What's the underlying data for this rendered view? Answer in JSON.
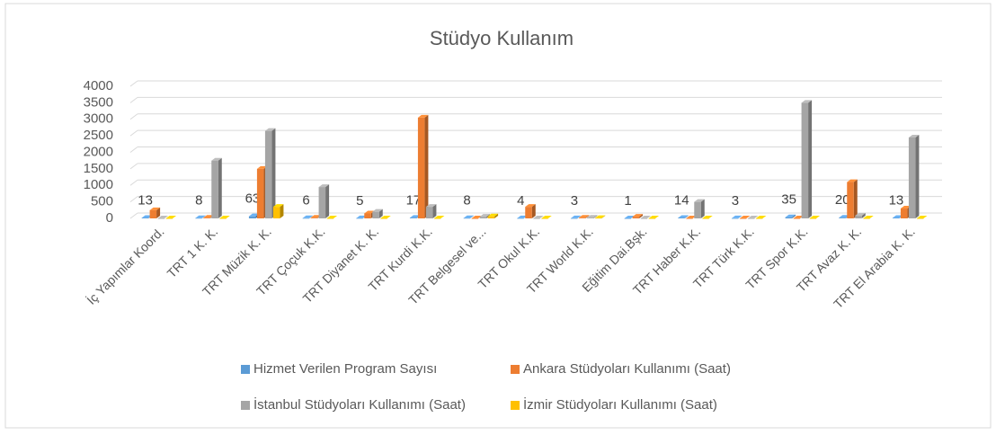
{
  "chart_data": {
    "type": "bar3d",
    "title": "Stüdyo Kullanım",
    "categories": [
      "İç Yapımlar Koord.",
      "TRT 1 K. K.",
      "TRT Müzik K. K.",
      "TRT Çoçuk K.K.",
      "TRT Diyanet K. K.",
      "TRT Kurdi K.K.",
      "TRT Belgesel ve...",
      "TRT Okul K.K.",
      "TRT World K.K.",
      "Eğitim Dai.Bşk.",
      "TRT Haber K.K.",
      "TRT Türk K.K.",
      "TRT Spor K.K.",
      "TRT Avaz K. K.",
      "TRT El Arabia K. K."
    ],
    "series": [
      {
        "name": "Hizmet Verilen Program Sayısı",
        "color": "#5b9bd5",
        "values": [
          13,
          8,
          63,
          6,
          5,
          17,
          8,
          4,
          3,
          1,
          14,
          3,
          35,
          20,
          13
        ],
        "data_labels": true
      },
      {
        "name": "Ankara Stüdyoları Kullanımı (Saat)",
        "color": "#ed7d31",
        "values": [
          250,
          20,
          1500,
          20,
          150,
          3050,
          0,
          350,
          20,
          50,
          0,
          0,
          0,
          1100,
          300
        ]
      },
      {
        "name": "İstanbul Stüdyoları Kullanımı (Saat)",
        "color": "#a5a5a5",
        "values": [
          0,
          1750,
          2650,
          950,
          200,
          350,
          50,
          0,
          20,
          0,
          500,
          0,
          3500,
          80,
          2450
        ]
      },
      {
        "name": "İzmir Stüdyoları Kullanımı (Saat)",
        "color": "#ffc000",
        "values": [
          0,
          0,
          350,
          0,
          0,
          0,
          60,
          0,
          10,
          0,
          0,
          0,
          0,
          0,
          0
        ]
      }
    ],
    "ylim": [
      0,
      4000
    ],
    "yticks": [
      0,
      500,
      1000,
      1500,
      2000,
      2500,
      3000,
      3500,
      4000
    ],
    "grid": true,
    "legend": "bottom"
  }
}
